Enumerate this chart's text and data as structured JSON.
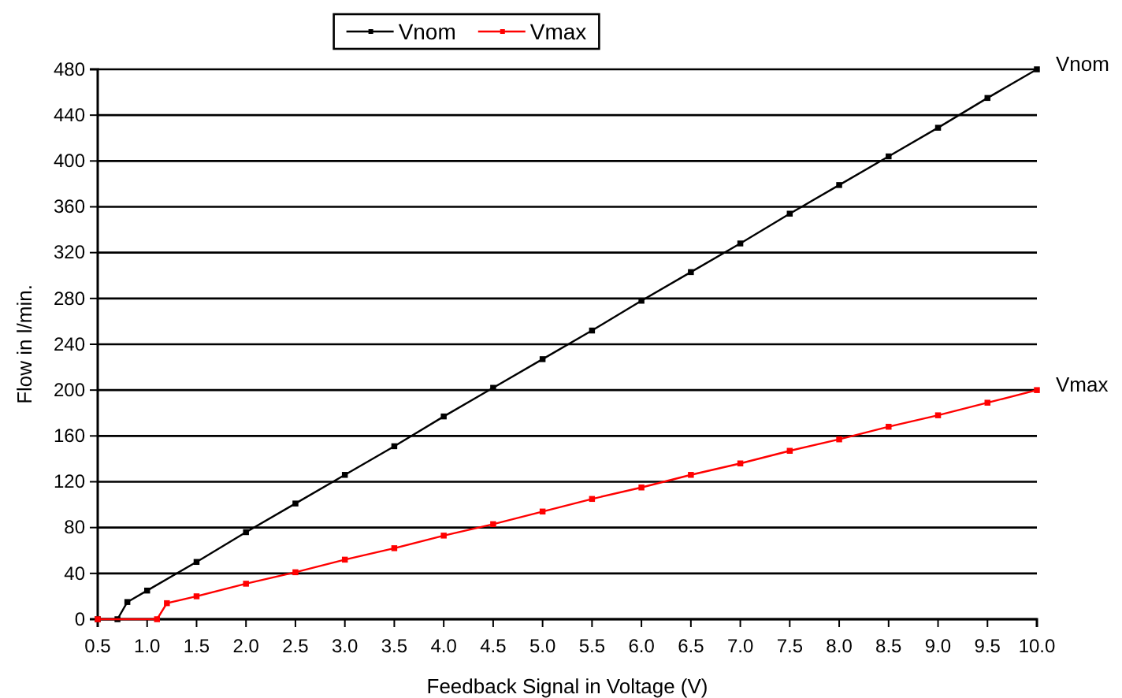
{
  "chart_data": {
    "type": "line",
    "xlabel": "Feedback Signal in Voltage (V)",
    "ylabel": "Flow in l/min.",
    "xlim": [
      0.5,
      10
    ],
    "xticks": [
      {
        "value": 0.5,
        "label": "0.5"
      },
      {
        "value": 1,
        "label": "1.0"
      },
      {
        "value": 1.5,
        "label": "1.5"
      },
      {
        "value": 2,
        "label": "2.0"
      },
      {
        "value": 2.5,
        "label": "2.5"
      },
      {
        "value": 3,
        "label": "3.0"
      },
      {
        "value": 3.5,
        "label": "3.5"
      },
      {
        "value": 4,
        "label": "4.0"
      },
      {
        "value": 4.5,
        "label": "4.5"
      },
      {
        "value": 5,
        "label": "5.0"
      },
      {
        "value": 5.5,
        "label": "5.5"
      },
      {
        "value": 6,
        "label": "6.0"
      },
      {
        "value": 6.5,
        "label": "6.5"
      },
      {
        "value": 7,
        "label": "7.0"
      },
      {
        "value": 7.5,
        "label": "7.5"
      },
      {
        "value": 8,
        "label": "8.0"
      },
      {
        "value": 8.5,
        "label": "8.5"
      },
      {
        "value": 9,
        "label": "9.0"
      },
      {
        "value": 9.5,
        "label": "9.5"
      },
      {
        "value": 10,
        "label": "10.0"
      }
    ],
    "ylim": [
      0,
      480
    ],
    "yticks": [
      0,
      40,
      80,
      120,
      160,
      200,
      240,
      280,
      320,
      360,
      400,
      440,
      480
    ],
    "grid": "y",
    "legend": "top",
    "marker": "square",
    "line_style": "solid",
    "series": [
      {
        "name": "Vnom",
        "color": "#000000",
        "x": [
          0.5,
          0.7,
          0.8,
          1,
          1.5,
          2,
          2.5,
          3,
          3.5,
          4,
          4.5,
          5,
          5.5,
          6,
          6.5,
          7,
          7.5,
          8,
          8.5,
          9,
          9.5,
          10
        ],
        "values": [
          0,
          0,
          15,
          25,
          50,
          76,
          101,
          126,
          151,
          177,
          202,
          227,
          252,
          278,
          303,
          328,
          354,
          379,
          404,
          429,
          455,
          480
        ]
      },
      {
        "name": "Vmax",
        "color": "#ff0000",
        "x": [
          0.5,
          1.1,
          1.2,
          1.5,
          2,
          2.5,
          3,
          3.5,
          4,
          4.5,
          5,
          5.5,
          6,
          6.5,
          7,
          7.5,
          8,
          8.5,
          9,
          9.5,
          10
        ],
        "values": [
          0,
          0,
          14,
          20,
          31,
          41,
          52,
          62,
          73,
          83,
          94,
          105,
          115,
          126,
          136,
          147,
          157,
          168,
          178,
          189,
          200
        ]
      }
    ]
  }
}
